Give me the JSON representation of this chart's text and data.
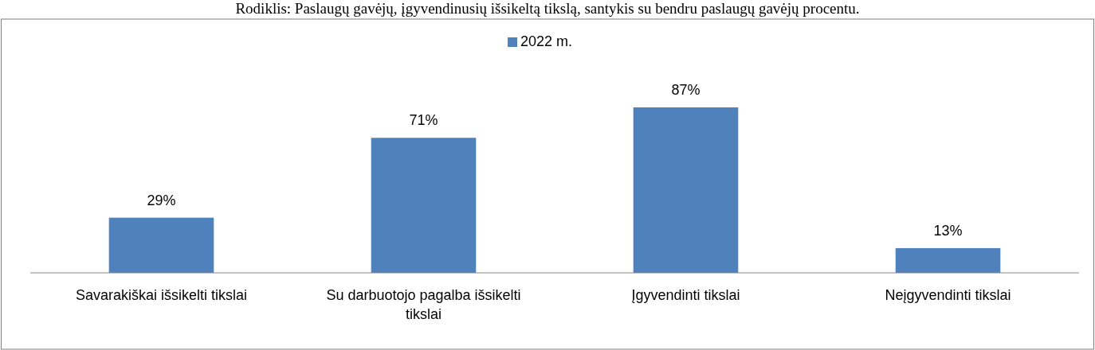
{
  "chart_data": {
    "type": "bar",
    "title": "Rodiklis: Paslaugų gavėjų, įgyvendinusių išsikeltą tikslą, santykis su bendru paslaugų gavėjų procentu.",
    "categories": [
      "Savarakiškai išsikelti tikslai",
      "Su darbuotojo pagalba išsikelti tikslai",
      "Įgyvendinti tikslai",
      "Neįgyvendinti tikslai"
    ],
    "series": [
      {
        "name": "2022 m.",
        "color": "#4f81bd",
        "values": [
          29,
          71,
          87,
          13
        ],
        "value_labels": [
          "29%",
          "71%",
          "87%",
          "13%"
        ]
      }
    ],
    "legend": "top"
  }
}
